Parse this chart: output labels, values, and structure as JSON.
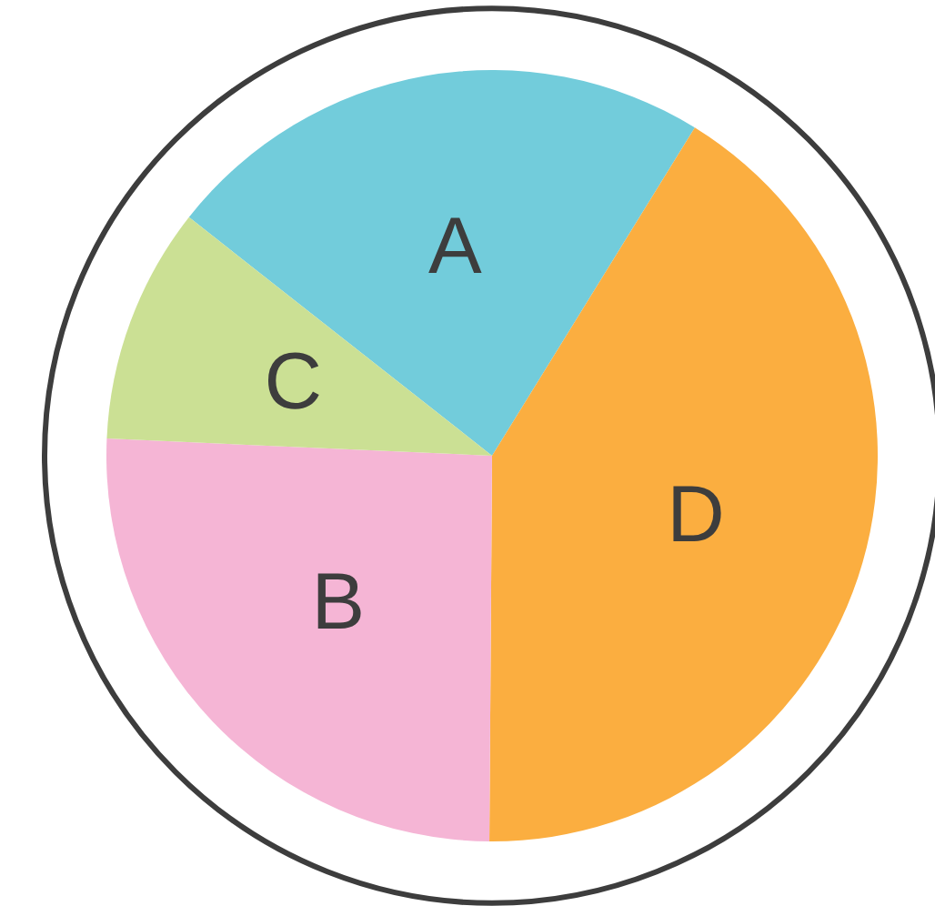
{
  "chart_data": {
    "type": "pie",
    "categories": [
      "A",
      "D",
      "B",
      "C"
    ],
    "values": [
      23.2,
      41.3,
      25.6,
      9.9
    ],
    "colors": [
      "#72ccdb",
      "#fbae40",
      "#f5b5d5",
      "#cbe094"
    ],
    "data_labels": false
  }
}
